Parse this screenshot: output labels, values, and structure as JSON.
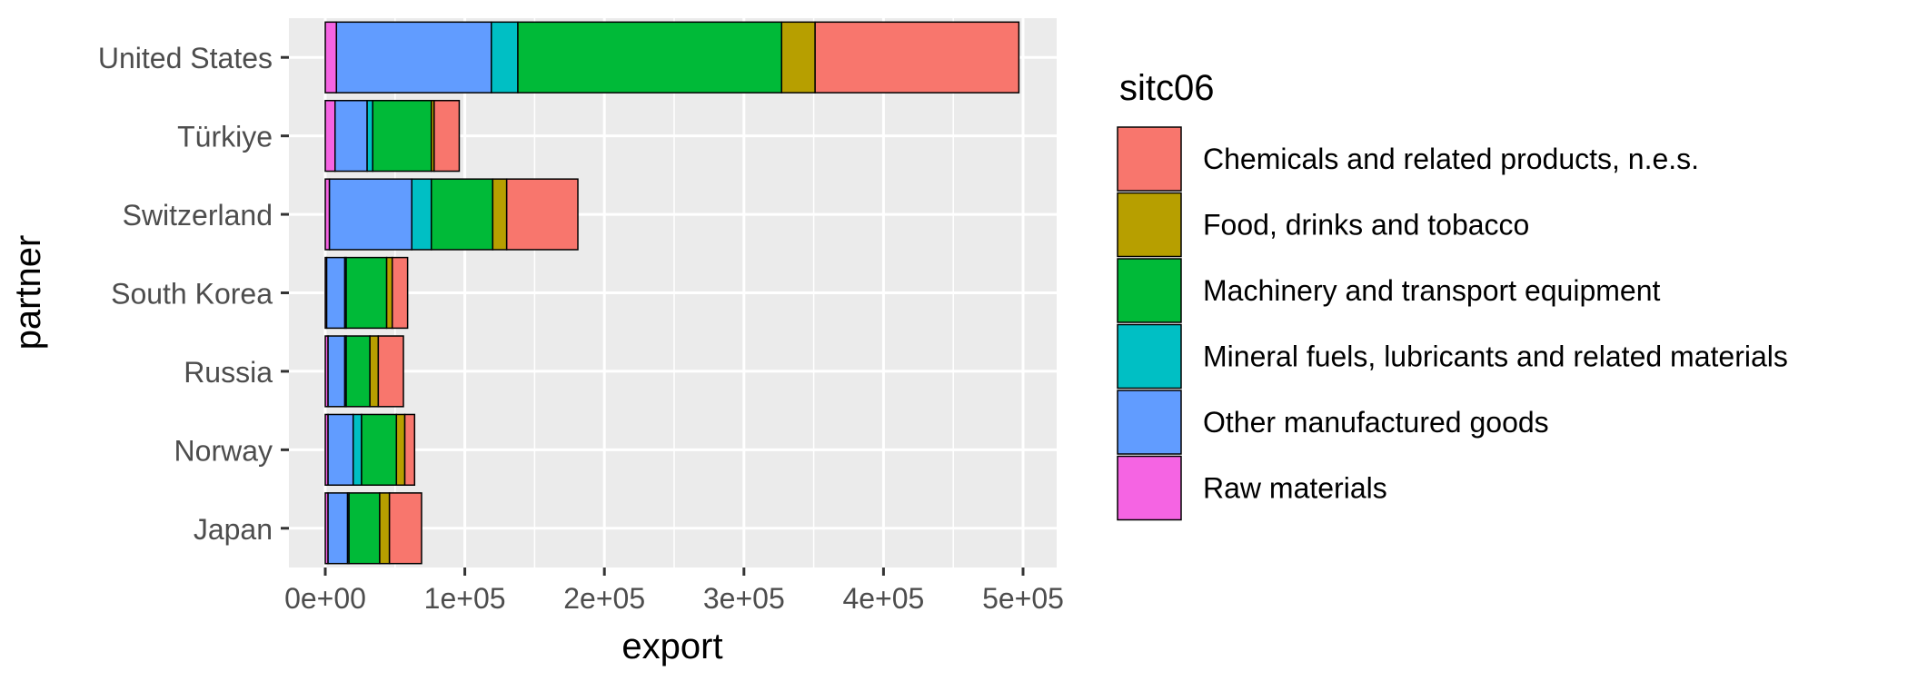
{
  "chart_data": {
    "type": "bar",
    "orientation": "horizontal",
    "stacked": true,
    "xlabel": "export",
    "ylabel": "partner",
    "xlim": [
      -25000,
      525000
    ],
    "xticks": [
      0,
      100000,
      200000,
      300000,
      400000,
      500000
    ],
    "xtick_labels": [
      "0e+00",
      "1e+05",
      "2e+05",
      "3e+05",
      "4e+05",
      "5e+05"
    ],
    "grid": true,
    "legend": {
      "title": "sitc06",
      "position": "right"
    },
    "categories": [
      "Japan",
      "Norway",
      "Russia",
      "South Korea",
      "Switzerland",
      "Türkiye",
      "United States"
    ],
    "stack_order": [
      "Raw materials",
      "Other manufactured goods",
      "Mineral fuels, lubricants and related materials",
      "Machinery and transport equipment",
      "Food, drinks and tobacco",
      "Chemicals and related products, n.e.s."
    ],
    "series": [
      {
        "name": "Chemicals and related products, n.e.s.",
        "color": "#F8766D",
        "values": [
          23000,
          7000,
          18000,
          11000,
          51000,
          18000,
          146000
        ]
      },
      {
        "name": "Food, drinks and tobacco",
        "color": "#B79F00",
        "values": [
          7000,
          6000,
          6000,
          4000,
          10000,
          2000,
          24000
        ]
      },
      {
        "name": "Machinery and transport equipment",
        "color": "#00BA38",
        "values": [
          22000,
          25000,
          17000,
          29000,
          44000,
          42000,
          189000
        ]
      },
      {
        "name": "Mineral fuels, lubricants and related materials",
        "color": "#00BFC4",
        "values": [
          1000,
          6000,
          1000,
          1000,
          14000,
          4000,
          19000
        ]
      },
      {
        "name": "Other manufactured goods",
        "color": "#619CFF",
        "values": [
          14000,
          18000,
          12000,
          13000,
          59000,
          23000,
          111000
        ]
      },
      {
        "name": "Raw materials",
        "color": "#F564E3",
        "values": [
          2000,
          2000,
          2000,
          1000,
          3000,
          7000,
          8000
        ]
      }
    ]
  }
}
